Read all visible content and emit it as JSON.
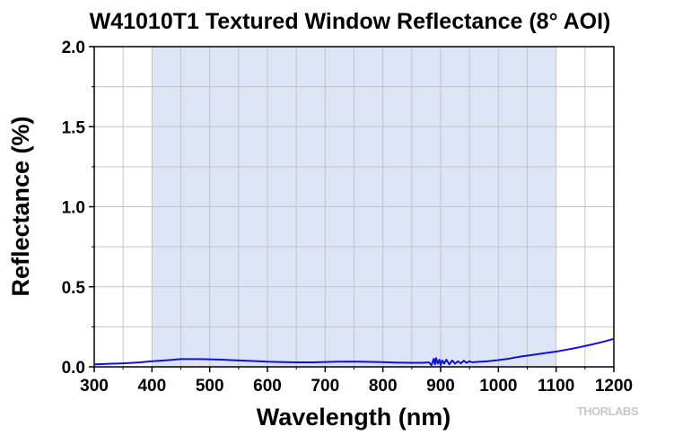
{
  "chart_data": {
    "type": "line",
    "title": "W41010T1 Textured Window Reflectance (8° AOI)",
    "xlabel": "Wavelength (nm)",
    "ylabel": "Reflectance (%)",
    "xlim": [
      300,
      1200
    ],
    "ylim": [
      0,
      2.0
    ],
    "x_ticks": [
      300,
      400,
      500,
      600,
      700,
      800,
      900,
      1000,
      1100,
      1200
    ],
    "x_tick_labels": [
      "300",
      "400",
      "500",
      "600",
      "700",
      "800",
      "900",
      "1000",
      "1100",
      "1200"
    ],
    "y_ticks": [
      0,
      0.5,
      1.0,
      1.5,
      2.0
    ],
    "y_tick_labels": [
      "0.0",
      "0.5",
      "1.0",
      "1.5",
      "2.0"
    ],
    "x_minor_step": 50,
    "y_minor_step": 0.25,
    "grid": true,
    "highlight_band": {
      "x": [
        400,
        1100
      ],
      "color": "#dce4f6"
    },
    "series": [
      {
        "color": "#1010d8",
        "x": [
          300,
          320,
          350,
          380,
          400,
          430,
          450,
          480,
          500,
          520,
          550,
          580,
          600,
          620,
          650,
          680,
          700,
          720,
          750,
          780,
          800,
          820,
          850,
          870,
          880,
          884,
          888,
          890,
          892,
          895,
          898,
          900,
          903,
          906,
          910,
          915,
          920,
          925,
          930,
          935,
          940,
          945,
          950,
          955,
          960,
          970,
          980,
          1000,
          1020,
          1040,
          1060,
          1080,
          1100,
          1120,
          1140,
          1160,
          1180,
          1200
        ],
        "y": [
          0.015,
          0.018,
          0.022,
          0.028,
          0.035,
          0.042,
          0.048,
          0.048,
          0.047,
          0.045,
          0.04,
          0.036,
          0.032,
          0.03,
          0.028,
          0.028,
          0.03,
          0.032,
          0.033,
          0.031,
          0.029,
          0.027,
          0.025,
          0.025,
          0.028,
          0.01,
          0.05,
          0.015,
          0.055,
          0.02,
          0.045,
          0.01,
          0.04,
          0.02,
          0.045,
          0.015,
          0.04,
          0.02,
          0.035,
          0.022,
          0.038,
          0.025,
          0.035,
          0.028,
          0.03,
          0.032,
          0.034,
          0.042,
          0.052,
          0.065,
          0.075,
          0.085,
          0.095,
          0.108,
          0.122,
          0.138,
          0.155,
          0.175
        ]
      }
    ],
    "watermark": "THORLABS"
  }
}
